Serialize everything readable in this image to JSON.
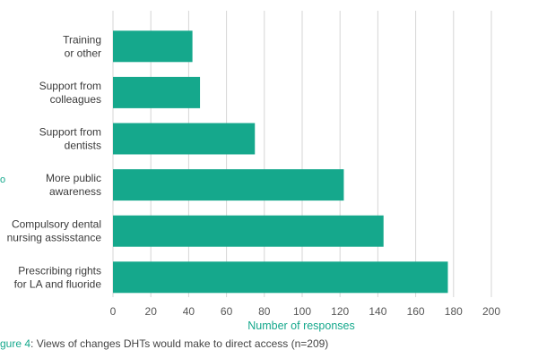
{
  "chart_data": {
    "type": "bar",
    "orientation": "horizontal",
    "categories": [
      [
        "Training",
        "or other"
      ],
      [
        "Support from",
        "colleagues"
      ],
      [
        "Support from",
        "dentists"
      ],
      [
        "More public",
        "awareness"
      ],
      [
        "Compulsory dental",
        "nursing assisstance"
      ],
      [
        "Prescribing rights",
        "for LA and fluoride"
      ]
    ],
    "values": [
      42,
      46,
      75,
      122,
      143,
      177
    ],
    "xlabel": "Number of responses",
    "xlim": [
      0,
      200
    ],
    "xticks": [
      "0",
      "20",
      "40",
      "60",
      "80",
      "100",
      "120",
      "140",
      "160",
      "180",
      "200"
    ],
    "grid": true,
    "bar_color": "#15a88c",
    "grid_color": "#d6d6d6",
    "axis_label_color": "#15a88c"
  },
  "side_mark": "o",
  "caption": {
    "figure_label": "gure 4",
    "text": ": Views of changes DHTs would make to direct access (n=209)"
  }
}
